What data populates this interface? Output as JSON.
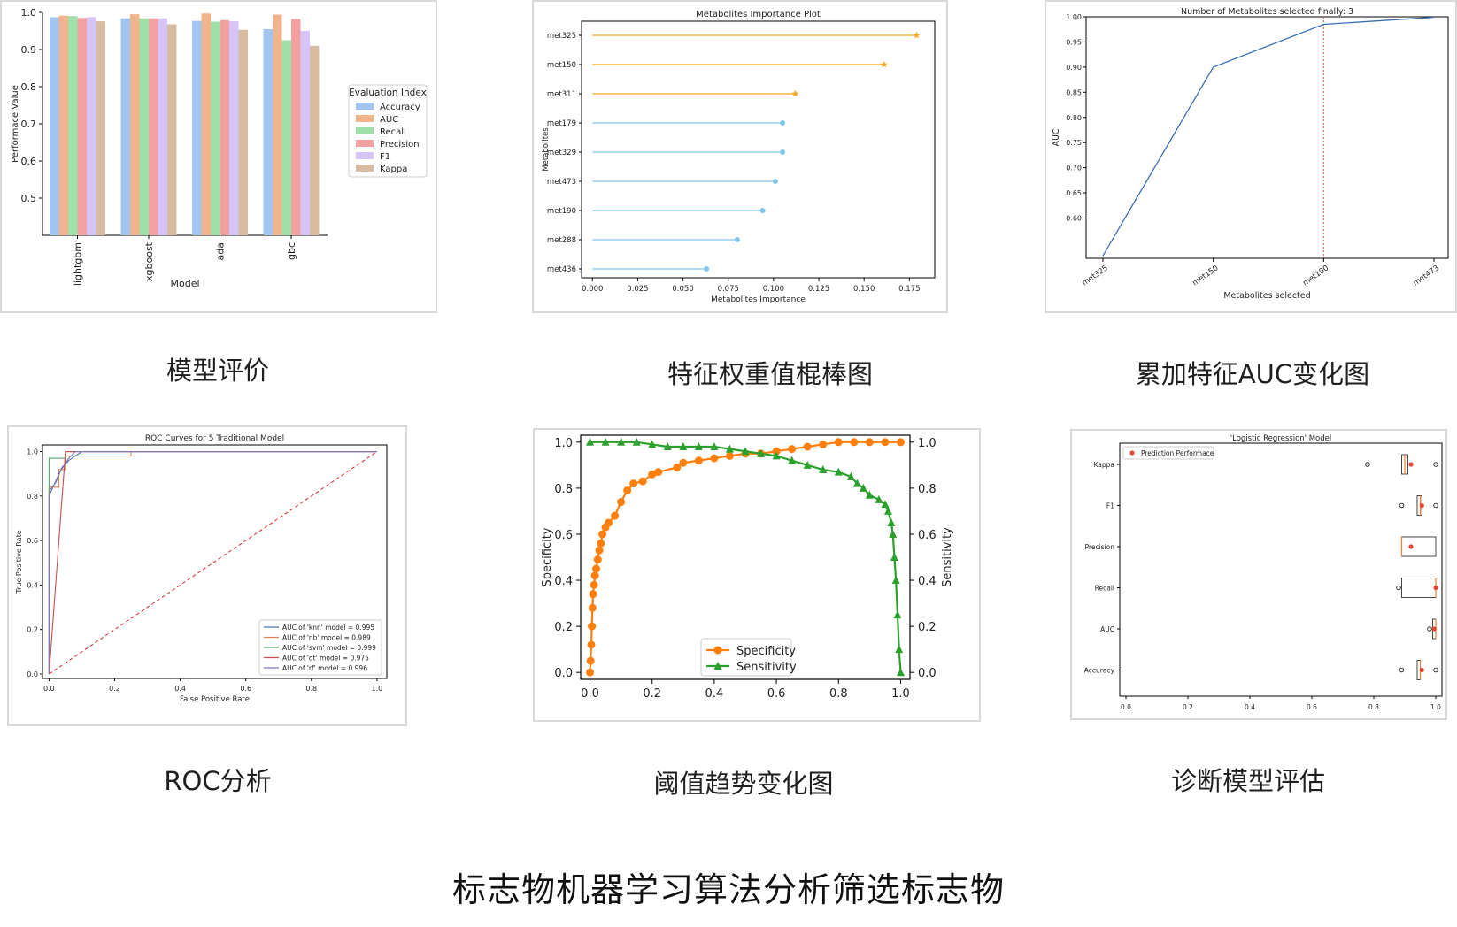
{
  "page_title": "标志物机器学习算法分析筛选标志物",
  "captions": {
    "c1": "模型评价",
    "c2": "特征权重值棍棒图",
    "c3": "累加特征AUC变化图",
    "c4": "ROC分析",
    "c5": "阈值趋势变化图",
    "c6": "诊断模型评估"
  },
  "chart_data": [
    {
      "id": "model-evaluation",
      "type": "bar",
      "title": "",
      "xlabel": "Model",
      "ylabel": "Performace Value",
      "ylim": [
        0.4,
        1.0
      ],
      "yticks": [
        0.5,
        0.6,
        0.7,
        0.8,
        0.9,
        1.0
      ],
      "categories": [
        "lightgbm",
        "xgboost",
        "ada",
        "gbc"
      ],
      "legend_title": "Evaluation Index",
      "legend_position": "right",
      "series": [
        {
          "name": "Accuracy",
          "color": "#a1c4f0",
          "values": [
            0.987,
            0.984,
            0.977,
            0.955
          ]
        },
        {
          "name": "AUC",
          "color": "#f2b48d",
          "values": [
            0.991,
            0.995,
            0.997,
            0.994
          ]
        },
        {
          "name": "Recall",
          "color": "#9fe0a8",
          "values": [
            0.99,
            0.984,
            0.975,
            0.925
          ]
        },
        {
          "name": "Precision",
          "color": "#f3a0a0",
          "values": [
            0.985,
            0.984,
            0.979,
            0.982
          ]
        },
        {
          "name": "F1",
          "color": "#d5c4f5",
          "values": [
            0.987,
            0.984,
            0.976,
            0.95
          ]
        },
        {
          "name": "Kappa",
          "color": "#d8bca2",
          "values": [
            0.976,
            0.968,
            0.953,
            0.91
          ]
        }
      ]
    },
    {
      "id": "importance-lollipop",
      "type": "lollipop",
      "title": "Metabolites Importance Plot",
      "xlabel": "Metabolites Importance",
      "ylabel": "Metabolites",
      "xlim": [
        -0.006,
        0.189
      ],
      "xticks": [
        0.0,
        0.025,
        0.05,
        0.075,
        0.1,
        0.125,
        0.15,
        0.175
      ],
      "xtick_labels": [
        "0.000",
        "0.025",
        "0.050",
        "0.075",
        "0.100",
        "0.125",
        "0.150",
        "0.175"
      ],
      "items": [
        {
          "label": "met325",
          "value": 0.179,
          "marker": "star",
          "color": "#f5a623"
        },
        {
          "label": "met150",
          "value": 0.161,
          "marker": "star",
          "color": "#f5a623"
        },
        {
          "label": "met311",
          "value": 0.112,
          "marker": "star",
          "color": "#f5a623"
        },
        {
          "label": "met179",
          "value": 0.105,
          "marker": "dot",
          "color": "#7fc8ec"
        },
        {
          "label": "met329",
          "value": 0.105,
          "marker": "dot",
          "color": "#7fc8ec"
        },
        {
          "label": "met473",
          "value": 0.101,
          "marker": "dot",
          "color": "#7fc8ec"
        },
        {
          "label": "met190",
          "value": 0.094,
          "marker": "dot",
          "color": "#7fc8ec"
        },
        {
          "label": "met288",
          "value": 0.08,
          "marker": "dot",
          "color": "#7fc8ec"
        },
        {
          "label": "met436",
          "value": 0.063,
          "marker": "dot",
          "color": "#7fc8ec"
        }
      ]
    },
    {
      "id": "cumulative-auc",
      "type": "line",
      "title": "Number of Metabolites selected finally: 3",
      "xlabel": "Metabolites selected",
      "ylabel": "AUC",
      "categories": [
        "met325",
        "met150",
        "met100",
        "met473"
      ],
      "values": [
        0.525,
        0.9,
        0.985,
        0.999
      ],
      "ylim": [
        0.52,
        1.0
      ],
      "yticks": [
        0.6,
        0.65,
        0.7,
        0.75,
        0.8,
        0.85,
        0.9,
        0.95,
        1.0
      ],
      "ytick_labels": [
        "0.60",
        "0.65",
        "0.70",
        "0.75",
        "0.80",
        "0.85",
        "0.90",
        "0.95",
        "1.00"
      ],
      "cutoff_category": "met100",
      "line_color": "#3b6fb6",
      "cutoff_color": "#e05050"
    },
    {
      "id": "roc-curves",
      "type": "line",
      "title": "ROC Curves for 5 Traditional Model",
      "xlabel": "False Positive Rate",
      "ylabel": "True Positive Rate",
      "xlim": [
        -0.02,
        1.03
      ],
      "ylim": [
        -0.02,
        1.03
      ],
      "ticks": [
        0.0,
        0.2,
        0.4,
        0.6,
        0.8,
        1.0
      ],
      "tick_labels": [
        "0.0",
        "0.2",
        "0.4",
        "0.6",
        "0.8",
        "1.0"
      ],
      "legend_position": "lower right",
      "series": [
        {
          "name": "AUC of 'knn' model = 0.995",
          "color": "#4c72b0",
          "points": [
            [
              0,
              0
            ],
            [
              0,
              0.82
            ],
            [
              0.02,
              0.86
            ],
            [
              0.04,
              0.93
            ],
            [
              0.06,
              0.96
            ],
            [
              0.1,
              1.0
            ],
            [
              1,
              1
            ]
          ]
        },
        {
          "name": "AUC of 'nb' model = 0.989",
          "color": "#dd8452",
          "points": [
            [
              0,
              0
            ],
            [
              0,
              0.84
            ],
            [
              0.03,
              0.84
            ],
            [
              0.03,
              0.92
            ],
            [
              0.05,
              0.92
            ],
            [
              0.05,
              0.98
            ],
            [
              0.25,
              0.98
            ],
            [
              0.25,
              1.0
            ],
            [
              1,
              1
            ]
          ]
        },
        {
          "name": "AUC of 'svm' model = 0.999",
          "color": "#55a868",
          "points": [
            [
              0,
              0
            ],
            [
              0,
              0.97
            ],
            [
              0.05,
              0.97
            ],
            [
              0.05,
              1.0
            ],
            [
              1,
              1
            ]
          ]
        },
        {
          "name": "AUC of 'dt' model = 0.975",
          "color": "#c44e52",
          "points": [
            [
              0,
              0
            ],
            [
              0.05,
              1.0
            ],
            [
              1,
              1
            ]
          ]
        },
        {
          "name": "AUC of 'rf' model = 0.996",
          "color": "#8172b3",
          "points": [
            [
              0,
              0
            ],
            [
              0,
              0.8
            ],
            [
              0.03,
              0.9
            ],
            [
              0.06,
              0.97
            ],
            [
              0.08,
              1.0
            ],
            [
              1,
              1
            ]
          ]
        }
      ],
      "diagonal_color": "#d62728"
    },
    {
      "id": "threshold-trend",
      "type": "line",
      "title": "",
      "xlabel": "",
      "ylabel_left": "Specificity",
      "ylabel_right": "Sensitivity",
      "xlim": [
        -0.03,
        1.03
      ],
      "ylim": [
        -0.03,
        1.03
      ],
      "ticks": [
        0.0,
        0.2,
        0.4,
        0.6,
        0.8,
        1.0
      ],
      "tick_labels": [
        "0.0",
        "0.2",
        "0.4",
        "0.6",
        "0.8",
        "1.0"
      ],
      "legend_position": "lower center",
      "series": [
        {
          "name": "Specificity",
          "color": "#ff7f0e",
          "marker": "circle",
          "points": [
            [
              0.0,
              0.0
            ],
            [
              0.002,
              0.05
            ],
            [
              0.004,
              0.12
            ],
            [
              0.006,
              0.2
            ],
            [
              0.008,
              0.28
            ],
            [
              0.01,
              0.34
            ],
            [
              0.013,
              0.38
            ],
            [
              0.016,
              0.42
            ],
            [
              0.02,
              0.45
            ],
            [
              0.025,
              0.49
            ],
            [
              0.03,
              0.53
            ],
            [
              0.035,
              0.56
            ],
            [
              0.04,
              0.6
            ],
            [
              0.05,
              0.63
            ],
            [
              0.06,
              0.65
            ],
            [
              0.08,
              0.68
            ],
            [
              0.1,
              0.74
            ],
            [
              0.12,
              0.79
            ],
            [
              0.14,
              0.82
            ],
            [
              0.17,
              0.83
            ],
            [
              0.2,
              0.86
            ],
            [
              0.22,
              0.87
            ],
            [
              0.28,
              0.89
            ],
            [
              0.3,
              0.91
            ],
            [
              0.35,
              0.92
            ],
            [
              0.4,
              0.93
            ],
            [
              0.45,
              0.94
            ],
            [
              0.5,
              0.95
            ],
            [
              0.55,
              0.95
            ],
            [
              0.6,
              0.96
            ],
            [
              0.65,
              0.97
            ],
            [
              0.7,
              0.98
            ],
            [
              0.75,
              0.99
            ],
            [
              0.8,
              1.0
            ],
            [
              0.85,
              1.0
            ],
            [
              0.9,
              1.0
            ],
            [
              0.95,
              1.0
            ],
            [
              1.0,
              1.0
            ]
          ]
        },
        {
          "name": "Sensitivity",
          "color": "#2ca02c",
          "marker": "triangle",
          "points": [
            [
              0.0,
              1.0
            ],
            [
              0.05,
              1.0
            ],
            [
              0.1,
              1.0
            ],
            [
              0.15,
              1.0
            ],
            [
              0.2,
              0.99
            ],
            [
              0.25,
              0.98
            ],
            [
              0.3,
              0.98
            ],
            [
              0.35,
              0.98
            ],
            [
              0.4,
              0.98
            ],
            [
              0.45,
              0.97
            ],
            [
              0.5,
              0.96
            ],
            [
              0.55,
              0.95
            ],
            [
              0.6,
              0.94
            ],
            [
              0.65,
              0.92
            ],
            [
              0.7,
              0.9
            ],
            [
              0.75,
              0.88
            ],
            [
              0.8,
              0.87
            ],
            [
              0.84,
              0.85
            ],
            [
              0.86,
              0.82
            ],
            [
              0.88,
              0.8
            ],
            [
              0.9,
              0.77
            ],
            [
              0.93,
              0.75
            ],
            [
              0.95,
              0.73
            ],
            [
              0.96,
              0.7
            ],
            [
              0.97,
              0.65
            ],
            [
              0.975,
              0.6
            ],
            [
              0.98,
              0.5
            ],
            [
              0.985,
              0.4
            ],
            [
              0.99,
              0.25
            ],
            [
              0.995,
              0.1
            ],
            [
              1.0,
              0.0
            ]
          ]
        }
      ]
    },
    {
      "id": "diagnostic-boxplot",
      "type": "boxplot",
      "title": "'Logistic Regression' Model",
      "xlim": [
        -0.02,
        1.02
      ],
      "xticks": [
        0.0,
        0.2,
        0.4,
        0.6,
        0.8,
        1.0
      ],
      "xtick_labels": [
        "0.0",
        "0.2",
        "0.4",
        "0.6",
        "0.8",
        "1.0"
      ],
      "legend_label": "Prediction Performace",
      "legend_position": "upper left",
      "point_color": "#e8472f",
      "categories": [
        "Kappa",
        "F1",
        "Precision",
        "Recall",
        "AUC",
        "Accuracy"
      ],
      "boxes": [
        {
          "label": "Kappa",
          "q1": 0.89,
          "median": 0.9,
          "q3": 0.91,
          "outliers": [
            0.78,
            1.0
          ],
          "pred": 0.92
        },
        {
          "label": "F1",
          "q1": 0.94,
          "median": 0.95,
          "q3": 0.955,
          "outliers": [
            0.89,
            1.0
          ],
          "pred": 0.955
        },
        {
          "label": "Precision",
          "q1": 0.89,
          "median": 0.89,
          "q3": 1.0,
          "outliers": [],
          "pred": 0.92
        },
        {
          "label": "Recall",
          "q1": 0.89,
          "median": 1.0,
          "q3": 1.0,
          "outliers": [
            0.88
          ],
          "pred": 1.0
        },
        {
          "label": "AUC",
          "q1": 0.99,
          "median": 1.0,
          "q3": 1.0,
          "outliers": [
            0.98
          ],
          "pred": 0.995
        },
        {
          "label": "Accuracy",
          "q1": 0.94,
          "median": 0.95,
          "q3": 0.95,
          "outliers": [
            0.89,
            1.0
          ],
          "pred": 0.955
        }
      ]
    }
  ]
}
